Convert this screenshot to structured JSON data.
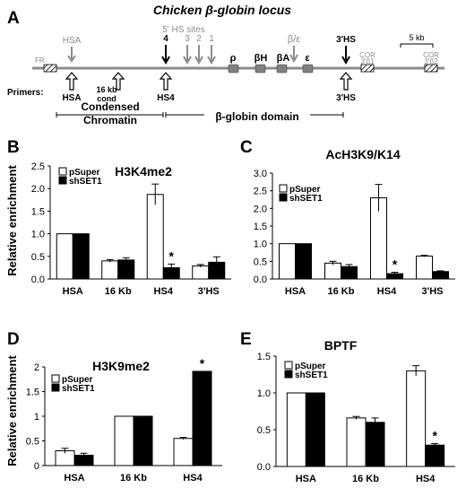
{
  "figure": {
    "panel_labels": [
      "A",
      "B",
      "C",
      "D",
      "E"
    ]
  },
  "locus_map": {
    "title": "Chicken β-globin locus",
    "above_labels": {
      "hsa": "HSA",
      "hs_sites": "5' HS sites",
      "hs4": "4",
      "hs3": "3",
      "hs2": "2",
      "hs1": "1",
      "beta_eps": "β/ε",
      "hs3prime": "3'HS",
      "scale": "5 kb"
    },
    "gene_labels": {
      "rho": "ρ",
      "betaH": "βH",
      "betaA": "βA",
      "eps": "ε"
    },
    "under_line_labels": {
      "fr": "FR",
      "cor1_a": "COR",
      "cor1_b": "3'β1",
      "cor2_a": "COR",
      "cor2_b": "3'β2"
    },
    "primers_label": "Primers:",
    "primer_labels": {
      "hsa": "HSA",
      "kb16_a": "16 kb",
      "kb16_b": "cond",
      "hs4": "HS4",
      "hs3prime": "3'HS"
    },
    "domain_labels": {
      "condensed_a": "Condensed",
      "condensed_b": "Chromatin",
      "globin": "β-globin domain"
    }
  },
  "colors": {
    "bar_pSuper": "#ffffff",
    "bar_shSET1": "#000000",
    "gray": "#8c8c8c",
    "gene_box": "#808080",
    "line": "#000000"
  },
  "chart_data": [
    {
      "panel": "B",
      "type": "bar",
      "title": "H3K4me2",
      "ylabel": "Relative enrichment",
      "categories": [
        "HSA",
        "16 Kb",
        "HS4",
        "3'HS"
      ],
      "ylim": [
        0,
        2.5
      ],
      "yticks": [
        "0.0",
        "0.5",
        "1.0",
        "1.5",
        "2.0",
        "2.5"
      ],
      "series": [
        {
          "name": "pSuper",
          "values": [
            1.0,
            0.4,
            1.87,
            0.29
          ],
          "errors": [
            0,
            0.03,
            0.23,
            0.03
          ]
        },
        {
          "name": "shSET1",
          "values": [
            1.0,
            0.42,
            0.25,
            0.37
          ],
          "errors": [
            0,
            0.05,
            0.08,
            0.12
          ]
        }
      ],
      "annotations": [
        {
          "category": "HS4",
          "series": "shSET1",
          "text": "*"
        }
      ],
      "legend": "top-left"
    },
    {
      "panel": "C",
      "type": "bar",
      "title": "AcH3K9/K14",
      "ylabel": "",
      "categories": [
        "HSA",
        "16 Kb",
        "HS4",
        "3'HS"
      ],
      "ylim": [
        0,
        3.0
      ],
      "yticks": [
        "0.0",
        "0.5",
        "1.0",
        "1.5",
        "2.0",
        "2.5",
        "3.0"
      ],
      "series": [
        {
          "name": "pSuper",
          "values": [
            1.0,
            0.45,
            2.3,
            0.65
          ],
          "errors": [
            0,
            0.05,
            0.38,
            0.02
          ]
        },
        {
          "name": "shSET1",
          "values": [
            1.0,
            0.35,
            0.15,
            0.21
          ],
          "errors": [
            0,
            0.06,
            0.04,
            0.02
          ]
        }
      ],
      "annotations": [
        {
          "category": "HS4",
          "series": "shSET1",
          "text": "*"
        }
      ],
      "legend": "top-left"
    },
    {
      "panel": "D",
      "type": "bar",
      "title": "H3K9me2",
      "ylabel": "Relative enrichment",
      "categories": [
        "HSA",
        "16 Kb",
        "HS4"
      ],
      "ylim": [
        0,
        2.0
      ],
      "yticks": [
        "0",
        "0.5",
        "1",
        "1.5",
        "2"
      ],
      "series": [
        {
          "name": "pSuper",
          "values": [
            0.3,
            1.0,
            0.55
          ],
          "errors": [
            0.05,
            0,
            0.02
          ]
        },
        {
          "name": "shSET1",
          "values": [
            0.21,
            1.0,
            1.91
          ],
          "errors": [
            0.04,
            0,
            0
          ]
        }
      ],
      "annotations": [
        {
          "category": "HS4",
          "series": "shSET1",
          "text": "*"
        }
      ],
      "legend": "top-left"
    },
    {
      "panel": "E",
      "type": "bar",
      "title": "BPTF",
      "ylabel": "",
      "categories": [
        "HSA",
        "16 Kb",
        "HS4"
      ],
      "ylim": [
        0,
        1.5
      ],
      "yticks": [
        "0.0",
        "0.5",
        "1.0",
        "1.5"
      ],
      "series": [
        {
          "name": "pSuper",
          "values": [
            1.0,
            0.66,
            1.3
          ],
          "errors": [
            0,
            0.02,
            0.07
          ]
        },
        {
          "name": "shSET1",
          "values": [
            1.0,
            0.6,
            0.29
          ],
          "errors": [
            0,
            0.06,
            0.02
          ]
        }
      ],
      "annotations": [
        {
          "category": "HS4",
          "series": "shSET1",
          "text": "*"
        }
      ],
      "legend": "top-left"
    }
  ]
}
